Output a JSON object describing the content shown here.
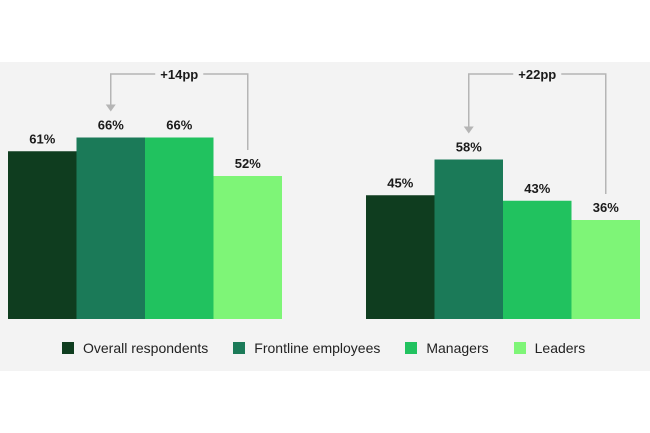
{
  "chart_data": [
    {
      "type": "bar",
      "categories": [
        "Overall respondents",
        "Frontline employees",
        "Managers",
        "Leaders"
      ],
      "values": [
        61,
        66,
        66,
        52
      ],
      "value_labels": [
        "61%",
        "66%",
        "66%",
        "52%"
      ],
      "ylim": [
        0,
        100
      ],
      "annotation": {
        "text": "+14pp",
        "from_category": "Leaders",
        "to_category": "Frontline employees"
      }
    },
    {
      "type": "bar",
      "categories": [
        "Overall respondents",
        "Frontline employees",
        "Managers",
        "Leaders"
      ],
      "values": [
        45,
        58,
        43,
        36
      ],
      "value_labels": [
        "45%",
        "58%",
        "43%",
        "36%"
      ],
      "ylim": [
        0,
        100
      ],
      "annotation": {
        "text": "+22pp",
        "from_category": "Leaders",
        "to_category": "Frontline employees"
      }
    }
  ],
  "colors": {
    "overall": "#0f3d1f",
    "frontline": "#1b7a58",
    "managers": "#21c25f",
    "leaders": "#7ef577",
    "panel": "#f3f3f3",
    "bracket": "#b5b5b5"
  },
  "legend": [
    {
      "label": "Overall respondents",
      "color": "#0f3d1f"
    },
    {
      "label": "Frontline employees",
      "color": "#1b7a58"
    },
    {
      "label": "Managers",
      "color": "#21c25f"
    },
    {
      "label": "Leaders",
      "color": "#7ef577"
    }
  ]
}
